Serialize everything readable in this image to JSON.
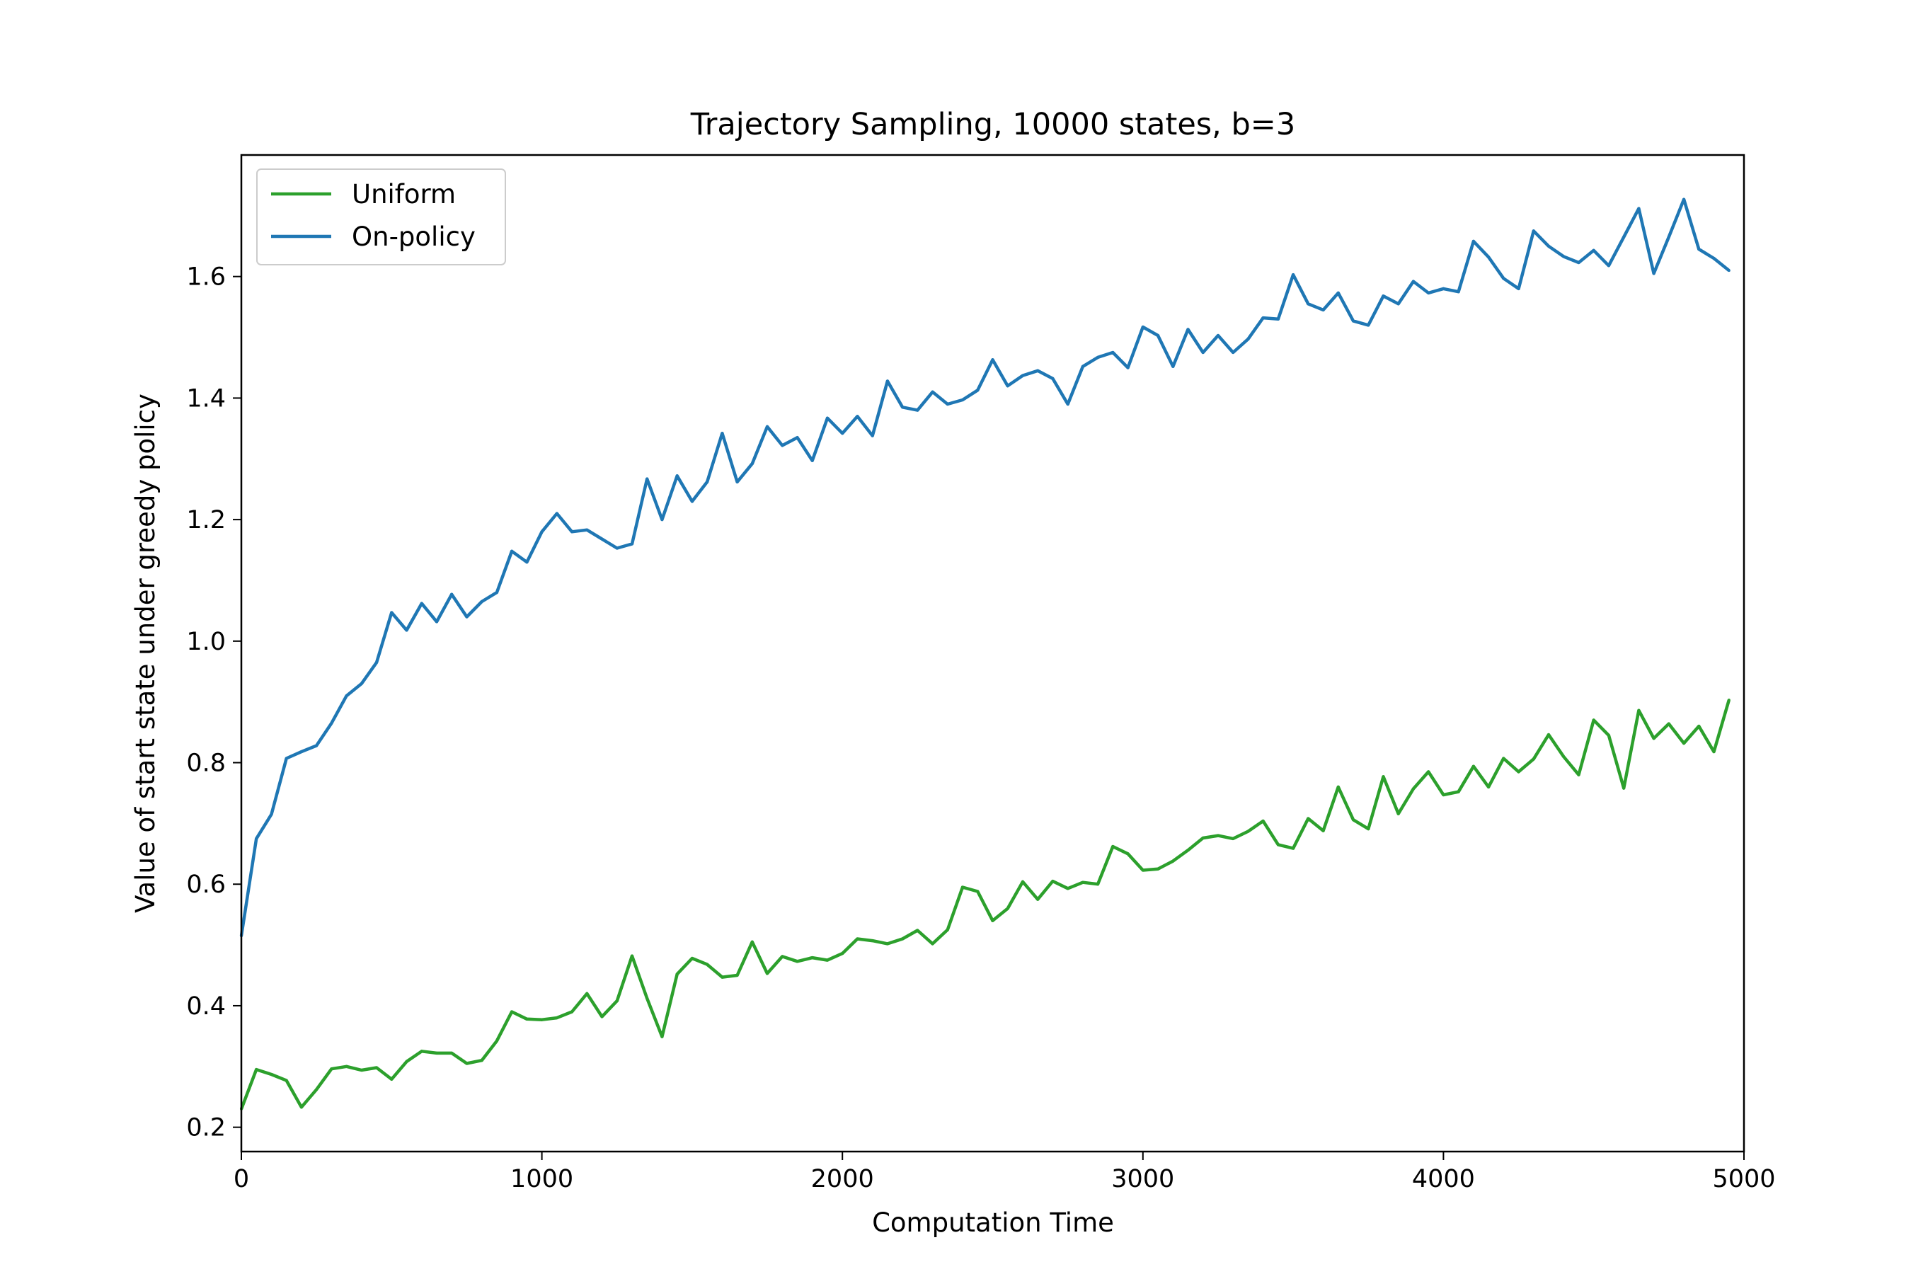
{
  "chart_data": {
    "type": "line",
    "title": "Trajectory Sampling, 10000 states, b=3",
    "xlabel": "Computation Time",
    "ylabel": "Value of start state under greedy policy",
    "xlim": [
      0,
      5000
    ],
    "ylim": [
      0.16,
      1.8
    ],
    "xticks": [
      0,
      1000,
      2000,
      3000,
      4000,
      5000
    ],
    "xtick_labels": [
      "0",
      "1000",
      "2000",
      "3000",
      "4000",
      "5000"
    ],
    "yticks": [
      0.2,
      0.4,
      0.6,
      0.8,
      1.0,
      1.2,
      1.4,
      1.6
    ],
    "ytick_labels": [
      "0.2",
      "0.4",
      "0.6",
      "0.8",
      "1.0",
      "1.2",
      "1.4",
      "1.6"
    ],
    "grid": false,
    "legend_position": "upper-left",
    "x": [
      0,
      50,
      100,
      150,
      200,
      250,
      300,
      350,
      400,
      450,
      500,
      550,
      600,
      650,
      700,
      750,
      800,
      850,
      900,
      950,
      1000,
      1050,
      1100,
      1150,
      1200,
      1250,
      1300,
      1350,
      1400,
      1450,
      1500,
      1550,
      1600,
      1650,
      1700,
      1750,
      1800,
      1850,
      1900,
      1950,
      2000,
      2050,
      2100,
      2150,
      2200,
      2250,
      2300,
      2350,
      2400,
      2450,
      2500,
      2550,
      2600,
      2650,
      2700,
      2750,
      2800,
      2850,
      2900,
      2950,
      3000,
      3050,
      3100,
      3150,
      3200,
      3250,
      3300,
      3350,
      3400,
      3450,
      3500,
      3550,
      3600,
      3650,
      3700,
      3750,
      3800,
      3850,
      3900,
      3950,
      4000,
      4050,
      4100,
      4150,
      4200,
      4250,
      4300,
      4350,
      4400,
      4450,
      4500,
      4550,
      4600,
      4650,
      4700,
      4750,
      4800,
      4850,
      4900,
      4950
    ],
    "series": [
      {
        "name": "Uniform",
        "color": "#2ca02c",
        "values": [
          0.23,
          0.295,
          0.287,
          0.277,
          0.233,
          0.262,
          0.296,
          0.3,
          0.294,
          0.298,
          0.279,
          0.308,
          0.325,
          0.322,
          0.322,
          0.305,
          0.31,
          0.342,
          0.39,
          0.378,
          0.377,
          0.38,
          0.39,
          0.42,
          0.382,
          0.408,
          0.482,
          0.412,
          0.349,
          0.452,
          0.478,
          0.468,
          0.447,
          0.45,
          0.505,
          0.453,
          0.481,
          0.473,
          0.479,
          0.475,
          0.486,
          0.51,
          0.507,
          0.502,
          0.51,
          0.524,
          0.502,
          0.525,
          0.595,
          0.588,
          0.54,
          0.56,
          0.604,
          0.575,
          0.605,
          0.593,
          0.603,
          0.6,
          0.662,
          0.65,
          0.623,
          0.625,
          0.638,
          0.656,
          0.676,
          0.68,
          0.675,
          0.687,
          0.704,
          0.665,
          0.659,
          0.708,
          0.688,
          0.76,
          0.706,
          0.691,
          0.777,
          0.716,
          0.757,
          0.785,
          0.747,
          0.752,
          0.794,
          0.76,
          0.807,
          0.785,
          0.806,
          0.846,
          0.81,
          0.78,
          0.87,
          0.845,
          0.758,
          0.886,
          0.84,
          0.864,
          0.832,
          0.86,
          0.818,
          0.903
        ]
      },
      {
        "name": "On-policy",
        "color": "#1f77b4",
        "values": [
          0.515,
          0.675,
          0.715,
          0.807,
          0.818,
          0.828,
          0.865,
          0.91,
          0.93,
          0.965,
          1.047,
          1.018,
          1.062,
          1.032,
          1.077,
          1.04,
          1.065,
          1.08,
          1.148,
          1.13,
          1.18,
          1.21,
          1.18,
          1.183,
          1.168,
          1.153,
          1.16,
          1.267,
          1.2,
          1.272,
          1.23,
          1.262,
          1.342,
          1.262,
          1.292,
          1.353,
          1.322,
          1.335,
          1.297,
          1.367,
          1.342,
          1.37,
          1.338,
          1.428,
          1.385,
          1.38,
          1.41,
          1.39,
          1.397,
          1.413,
          1.463,
          1.42,
          1.437,
          1.445,
          1.432,
          1.39,
          1.452,
          1.467,
          1.475,
          1.45,
          1.517,
          1.503,
          1.452,
          1.513,
          1.475,
          1.503,
          1.475,
          1.497,
          1.532,
          1.53,
          1.603,
          1.555,
          1.545,
          1.573,
          1.527,
          1.52,
          1.568,
          1.555,
          1.592,
          1.573,
          1.58,
          1.575,
          1.658,
          1.632,
          1.597,
          1.58,
          1.675,
          1.65,
          1.633,
          1.623,
          1.643,
          1.618,
          1.665,
          1.712,
          1.605,
          1.665,
          1.727,
          1.645,
          1.63,
          1.61
        ]
      }
    ]
  }
}
